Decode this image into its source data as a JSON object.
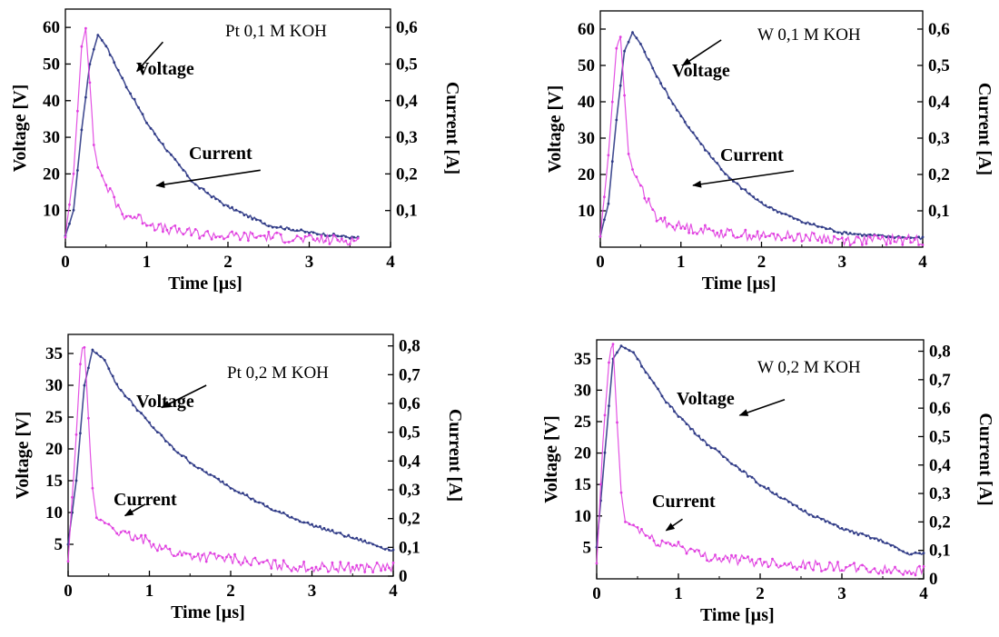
{
  "colors": {
    "voltage": "#2f3a86",
    "current": "#e040e0",
    "axis": "#000000"
  },
  "chart_data": [
    {
      "type": "line",
      "title": "Pt 0,1 M KOH",
      "xlabel": "Time [µs]",
      "ylabel": "Voltage [V]",
      "y2label": "Current [A]",
      "xlim": [
        0,
        4
      ],
      "ylim": [
        0,
        65
      ],
      "y2lim": [
        0,
        0.65
      ],
      "xticks": [
        "0",
        "1",
        "2",
        "3",
        "4"
      ],
      "yticks": [
        "10",
        "20",
        "30",
        "40",
        "50",
        "60"
      ],
      "y2ticks": [
        "0,1",
        "0,2",
        "0,3",
        "0,4",
        "0,5",
        "0,6"
      ],
      "annotations": [
        {
          "text": "Voltage"
        },
        {
          "text": "Current"
        }
      ],
      "series": [
        {
          "name": "Voltage",
          "axis": "left",
          "x": [
            0,
            0.1,
            0.2,
            0.3,
            0.4,
            0.5,
            0.7,
            1.0,
            1.3,
            1.6,
            2.0,
            2.5,
            3.0,
            3.6
          ],
          "y": [
            3,
            10,
            32,
            50,
            58,
            55,
            46,
            34,
            25,
            17,
            11,
            6,
            4,
            2.5
          ]
        },
        {
          "name": "Current",
          "axis": "right",
          "x": [
            0,
            0.1,
            0.2,
            0.25,
            0.3,
            0.35,
            0.4,
            0.5,
            0.6,
            0.7,
            0.9,
            1.2,
            1.5,
            2.0,
            2.5,
            3.0,
            3.6
          ],
          "y": [
            0.03,
            0.2,
            0.55,
            0.6,
            0.45,
            0.28,
            0.22,
            0.17,
            0.13,
            0.09,
            0.08,
            0.05,
            0.04,
            0.03,
            0.03,
            0.02,
            0.02
          ]
        }
      ]
    },
    {
      "type": "line",
      "title": "W 0,1 M KOH",
      "xlabel": "Time [µs]",
      "ylabel": "Voltage [V]",
      "y2label": "Current [A]",
      "xlim": [
        0,
        4
      ],
      "ylim": [
        0,
        65
      ],
      "y2lim": [
        0,
        0.65
      ],
      "xticks": [
        "0",
        "1",
        "2",
        "3",
        "4"
      ],
      "yticks": [
        "10",
        "20",
        "30",
        "40",
        "50",
        "60"
      ],
      "y2ticks": [
        "0,1",
        "0,2",
        "0,3",
        "0,4",
        "0,5",
        "0,6"
      ],
      "annotations": [
        {
          "text": "Voltage"
        },
        {
          "text": "Current"
        }
      ],
      "series": [
        {
          "name": "Voltage",
          "axis": "left",
          "x": [
            0,
            0.1,
            0.2,
            0.3,
            0.4,
            0.5,
            0.7,
            1.0,
            1.3,
            1.6,
            2.0,
            2.5,
            3.0,
            3.5,
            4.0
          ],
          "y": [
            3,
            12,
            35,
            54,
            59,
            56,
            47,
            36,
            27,
            19,
            12,
            7,
            4,
            3,
            2.5
          ]
        },
        {
          "name": "Current",
          "axis": "right",
          "x": [
            0,
            0.1,
            0.2,
            0.25,
            0.3,
            0.35,
            0.4,
            0.5,
            0.6,
            0.7,
            0.9,
            1.2,
            1.5,
            2.0,
            2.5,
            3.0,
            3.5,
            4.0
          ],
          "y": [
            0.03,
            0.25,
            0.55,
            0.58,
            0.42,
            0.26,
            0.21,
            0.17,
            0.12,
            0.08,
            0.06,
            0.05,
            0.04,
            0.03,
            0.03,
            0.02,
            0.02,
            0.02
          ]
        }
      ]
    },
    {
      "type": "line",
      "title": "Pt 0,2 M KOH",
      "xlabel": "Time [µs]",
      "ylabel": "Voltage [V]",
      "y2label": "Current [A]",
      "xlim": [
        0,
        4
      ],
      "ylim": [
        0,
        38
      ],
      "y2lim": [
        0,
        0.84
      ],
      "xticks": [
        "0",
        "1",
        "2",
        "3",
        "4"
      ],
      "yticks": [
        "5",
        "10",
        "15",
        "20",
        "25",
        "30",
        "35"
      ],
      "y2ticks": [
        "0",
        "0,1",
        "0,2",
        "0,3",
        "0,4",
        "0,5",
        "0,6",
        "0,7",
        "0,8"
      ],
      "annotations": [
        {
          "text": "Voltage"
        },
        {
          "text": "Current"
        }
      ],
      "series": [
        {
          "name": "Voltage",
          "axis": "left",
          "x": [
            0,
            0.1,
            0.2,
            0.3,
            0.45,
            0.6,
            0.8,
            1.0,
            1.3,
            1.6,
            2.0,
            2.5,
            3.0,
            3.5,
            4.0
          ],
          "y": [
            5,
            15,
            30,
            35.5,
            34,
            30,
            27,
            24,
            20,
            17,
            14,
            10.5,
            8,
            6,
            4
          ]
        },
        {
          "name": "Current",
          "axis": "right",
          "x": [
            0,
            0.08,
            0.16,
            0.2,
            0.25,
            0.3,
            0.35,
            0.5,
            0.7,
            1.0,
            1.3,
            1.6,
            2.0,
            2.5,
            3.0,
            3.5,
            4.0
          ],
          "y": [
            0.05,
            0.4,
            0.78,
            0.8,
            0.55,
            0.3,
            0.2,
            0.18,
            0.14,
            0.12,
            0.08,
            0.07,
            0.06,
            0.04,
            0.03,
            0.03,
            0.03
          ]
        }
      ]
    },
    {
      "type": "line",
      "title": "W 0,2 M KOH",
      "xlabel": "Time [µs]",
      "ylabel": "Voltage [V]",
      "y2label": "Current [A]",
      "xlim": [
        0,
        4
      ],
      "ylim": [
        0,
        38
      ],
      "y2lim": [
        0,
        0.84
      ],
      "xticks": [
        "0",
        "1",
        "2",
        "3",
        "4"
      ],
      "yticks": [
        "5",
        "10",
        "15",
        "20",
        "25",
        "30",
        "35"
      ],
      "y2ticks": [
        "0",
        "0,1",
        "0,2",
        "0,3",
        "0,4",
        "0,5",
        "0,6",
        "0,7",
        "0,8"
      ],
      "annotations": [
        {
          "text": "Voltage"
        },
        {
          "text": "Current"
        }
      ],
      "series": [
        {
          "name": "Voltage",
          "axis": "left",
          "x": [
            0,
            0.1,
            0.2,
            0.3,
            0.45,
            0.6,
            0.8,
            1.0,
            1.3,
            1.6,
            2.0,
            2.5,
            3.0,
            3.5,
            3.8,
            4.0
          ],
          "y": [
            5,
            20,
            35,
            37,
            36,
            33,
            29,
            26,
            22,
            19,
            15,
            11,
            8,
            6,
            4,
            4
          ]
        },
        {
          "name": "Current",
          "axis": "right",
          "x": [
            0,
            0.08,
            0.16,
            0.2,
            0.25,
            0.3,
            0.35,
            0.5,
            0.7,
            1.0,
            1.3,
            1.6,
            2.0,
            2.5,
            3.0,
            3.5,
            4.0
          ],
          "y": [
            0.05,
            0.5,
            0.8,
            0.82,
            0.55,
            0.3,
            0.2,
            0.18,
            0.13,
            0.12,
            0.08,
            0.07,
            0.06,
            0.05,
            0.04,
            0.03,
            0.03
          ]
        }
      ]
    }
  ]
}
